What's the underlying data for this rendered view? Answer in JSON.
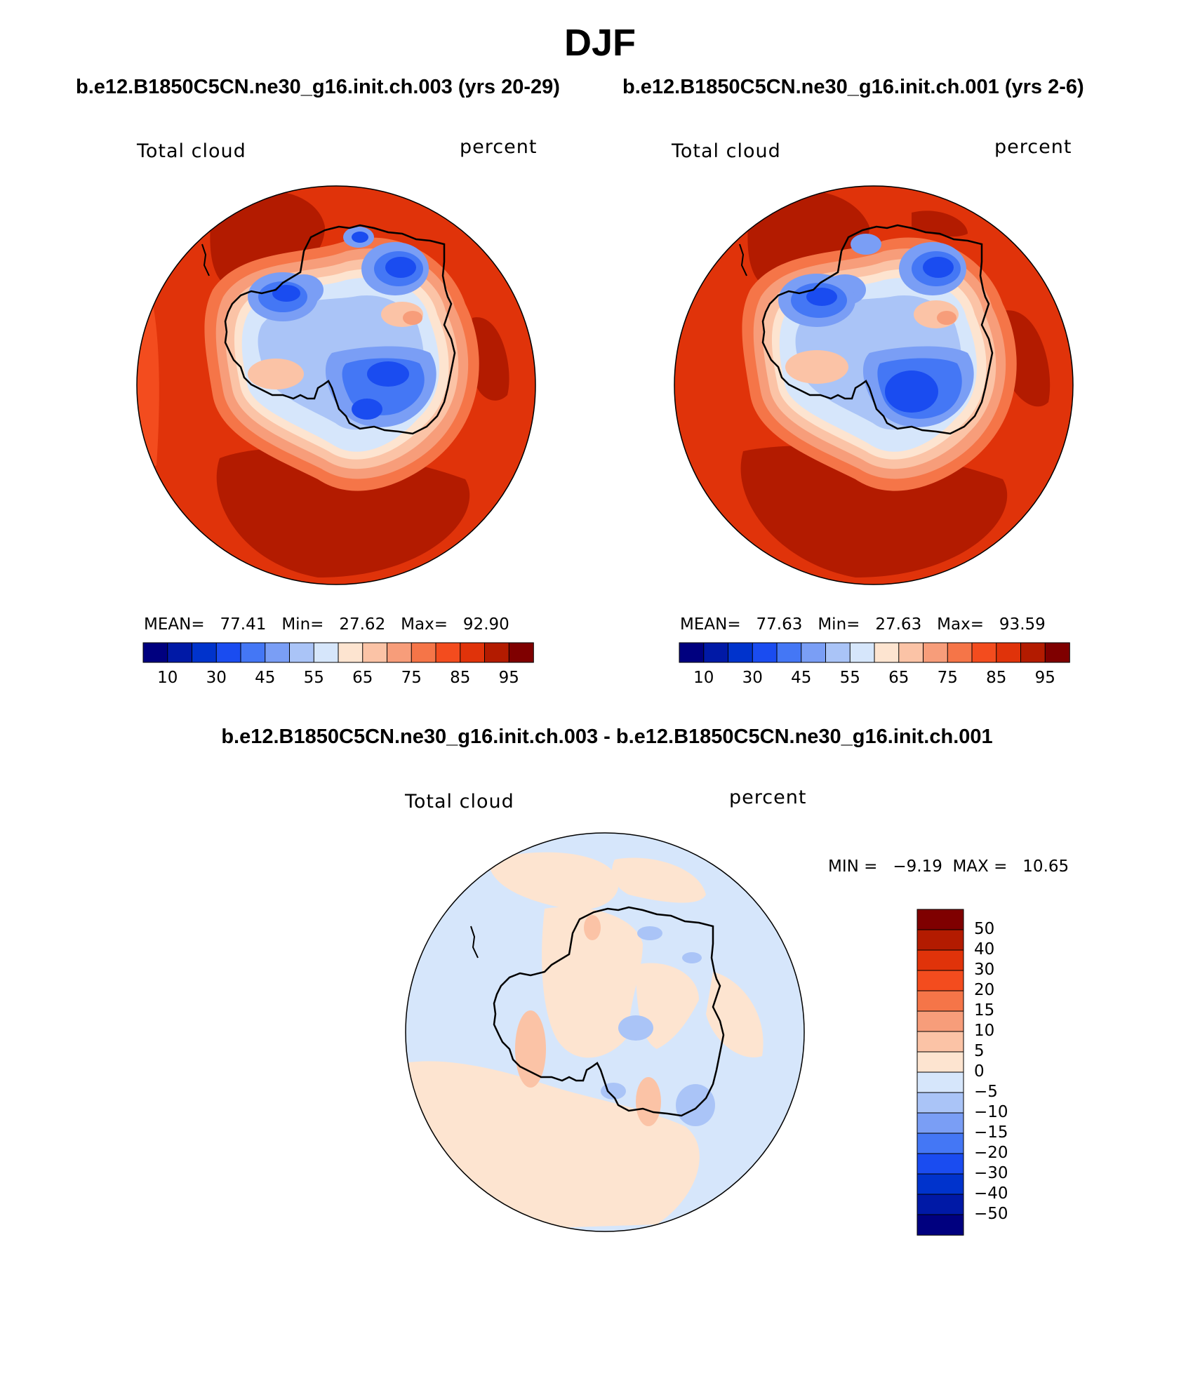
{
  "title": "DJF",
  "panels": [
    {
      "header": "b.e12.B1850C5CN.ne30_g16.init.ch.003 (yrs 20-29)",
      "variable_label": "Total cloud",
      "units_label": "percent",
      "stats": {
        "mean_label": "MEAN=",
        "mean": "77.41",
        "min_label": "Min=",
        "min": "27.62",
        "max_label": "Max=",
        "max": "92.90"
      }
    },
    {
      "header": "b.e12.B1850C5CN.ne30_g16.init.ch.001 (yrs 2-6)",
      "variable_label": "Total cloud",
      "units_label": "percent",
      "stats": {
        "mean_label": "MEAN=",
        "mean": "77.63",
        "min_label": "Min=",
        "min": "27.63",
        "max_label": "Max=",
        "max": "93.59"
      }
    }
  ],
  "difference_panel": {
    "header": "b.e12.B1850C5CN.ne30_g16.init.ch.003 - b.e12.B1850C5CN.ne30_g16.init.ch.001",
    "variable_label": "Total cloud",
    "units_label": "percent",
    "stats_text": "MIN =   −9.19  MAX =   10.65"
  },
  "colorbar_abs": {
    "colors": [
      "#00007f",
      "#0019a6",
      "#0033cc",
      "#1a4cf0",
      "#4477f5",
      "#7a9ef5",
      "#aac4f7",
      "#d6e6fb",
      "#fde4d0",
      "#fbc3a6",
      "#f79d7a",
      "#f57548",
      "#f34c1e",
      "#e0330a",
      "#b31b00",
      "#7f0000"
    ],
    "tick_labels": [
      "10",
      "30",
      "45",
      "55",
      "65",
      "75",
      "85",
      "95"
    ]
  },
  "colorbar_diff": {
    "colors_top_to_bottom": [
      "#7f0000",
      "#b31b00",
      "#e0330a",
      "#f34c1e",
      "#f57548",
      "#f79d7a",
      "#fbc3a6",
      "#fde4d0",
      "#d6e6fb",
      "#aac4f7",
      "#7a9ef5",
      "#4477f5",
      "#1a4cf0",
      "#0033cc",
      "#0019a6",
      "#00007f"
    ],
    "tick_labels_top_to_bottom": [
      "50",
      "40",
      "30",
      "20",
      "15",
      "10",
      "5",
      "0",
      "−5",
      "−10",
      "−15",
      "−20",
      "−30",
      "−40",
      "−50"
    ]
  },
  "map_palette": {
    "ocean_dark": "#b31b00",
    "ocean_mid": "#e0330a",
    "ocean_light": "#f34c1e",
    "ring_1": "#f57548",
    "ring_2": "#f79d7a",
    "ring_3": "#fbc3a6",
    "ring_4": "#fde4d0",
    "interior_light": "#d6e6fb",
    "interior_mid": "#aac4f7",
    "interior_low": "#7a9ef5",
    "interior_lower": "#4477f5",
    "interior_lowest": "#1a4cf0",
    "diff_pos": "#fde4d0",
    "diff_neg": "#d6e6fb",
    "diff_pos2": "#fbc3a6",
    "diff_neg2": "#aac4f7"
  }
}
